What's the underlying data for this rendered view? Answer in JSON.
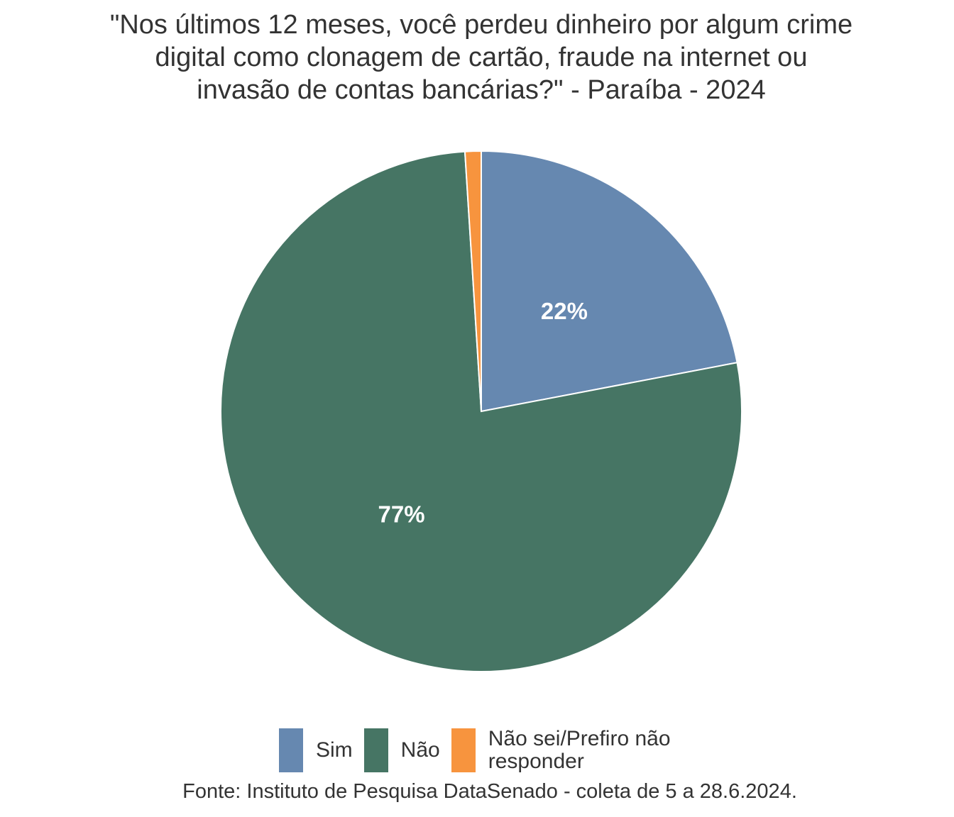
{
  "chart_data": {
    "type": "pie",
    "title_lines": [
      "\"Nos últimos 12 meses, você perdeu dinheiro por algum crime",
      "digital como clonagem de cartão, fraude na internet ou",
      "invasão de contas bancárias?\" - Paraíba - 2024"
    ],
    "categories": [
      "Sim",
      "Não",
      "Não sei/Prefiro não responder"
    ],
    "values": [
      22,
      77,
      1
    ],
    "data_labels": [
      "22%",
      "77%",
      ""
    ],
    "colors": [
      "#6688b0",
      "#467564",
      "#f7943e"
    ],
    "legend_position": "bottom",
    "source": "Fonte: Instituto de Pesquisa DataSenado - coleta de 5 a 28.6.2024."
  }
}
